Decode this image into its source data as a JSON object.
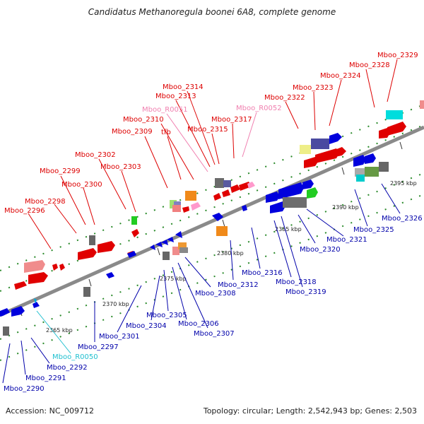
{
  "title": "Candidatus Methanoregula boonei 6A8, complete genome",
  "accession_text": "Accession: NC_009712",
  "topology_text": "Topology: circular; Length: 2,542,943 bp; Genes: 2,503",
  "colors": {
    "red_label": "#dd0000",
    "blue_label": "#0000aa",
    "pink_label": "#f080b0",
    "cyan_label": "#20c0d0",
    "backbone": "#888888"
  },
  "kbp_ticks": [
    "2365 kbp",
    "2370 kbp",
    "2375 kbp",
    "2380 kbp",
    "2385 kbp",
    "2390 kbp",
    "2395 kbp"
  ],
  "upper_labels": [
    {
      "text": "Mboo_2296",
      "color": "red"
    },
    {
      "text": "Mboo_2298",
      "color": "red"
    },
    {
      "text": "Mboo_2299",
      "color": "red"
    },
    {
      "text": "Mboo_2300",
      "color": "red"
    },
    {
      "text": "Mboo_2302",
      "color": "red"
    },
    {
      "text": "Mboo_2303",
      "color": "red"
    },
    {
      "text": "Mboo_2309",
      "color": "red"
    },
    {
      "text": "tfb",
      "color": "red"
    },
    {
      "text": "Mboo_2310",
      "color": "red"
    },
    {
      "text": "Mboo_R0051",
      "color": "pink"
    },
    {
      "text": "Mboo_2313",
      "color": "red"
    },
    {
      "text": "Mboo_2314",
      "color": "red"
    },
    {
      "text": "Mboo_2315",
      "color": "red"
    },
    {
      "text": "Mboo_2317",
      "color": "red"
    },
    {
      "text": "Mboo_R0052",
      "color": "pink"
    },
    {
      "text": "Mboo_2322",
      "color": "red"
    },
    {
      "text": "Mboo_2323",
      "color": "red"
    },
    {
      "text": "Mboo_2324",
      "color": "red"
    },
    {
      "text": "Mboo_2328",
      "color": "red"
    },
    {
      "text": "Mboo_2329",
      "color": "red"
    }
  ],
  "lower_labels": [
    {
      "text": "Mboo_2290",
      "color": "blue"
    },
    {
      "text": "Mboo_2291",
      "color": "blue"
    },
    {
      "text": "Mboo_2292",
      "color": "blue"
    },
    {
      "text": "Mboo_R0050",
      "color": "cyan"
    },
    {
      "text": "Mboo_2297",
      "color": "blue"
    },
    {
      "text": "Mboo_2301",
      "color": "blue"
    },
    {
      "text": "Mboo_2304",
      "color": "blue"
    },
    {
      "text": "Mboo_2305",
      "color": "blue"
    },
    {
      "text": "Mboo_2306",
      "color": "blue"
    },
    {
      "text": "Mboo_2307",
      "color": "blue"
    },
    {
      "text": "Mboo_2308",
      "color": "blue"
    },
    {
      "text": "Mboo_2312",
      "color": "blue"
    },
    {
      "text": "Mboo_2316",
      "color": "blue"
    },
    {
      "text": "Mboo_2318",
      "color": "blue"
    },
    {
      "text": "Mboo_2319",
      "color": "blue"
    },
    {
      "text": "Mboo_2320",
      "color": "blue"
    },
    {
      "text": "Mboo_2321",
      "color": "blue"
    },
    {
      "text": "Mboo_2325",
      "color": "blue"
    },
    {
      "text": "Mboo_2326",
      "color": "blue"
    }
  ]
}
